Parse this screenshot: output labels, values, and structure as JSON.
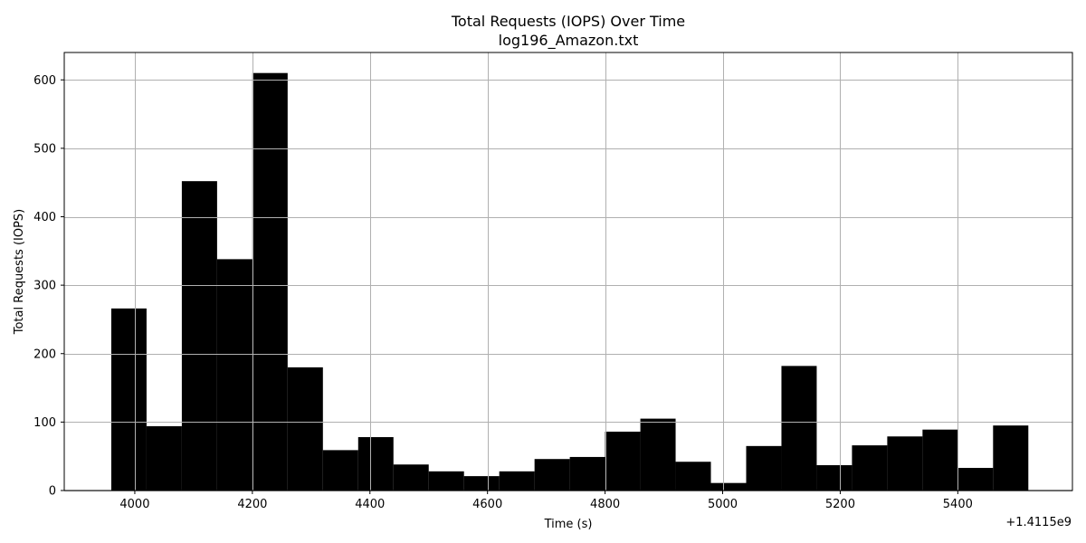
{
  "chart_data": {
    "type": "bar",
    "title": "Total Requests (IOPS) Over Time",
    "subtitle": "log196_Amazon.txt",
    "xlabel": "Time (s)",
    "ylabel": "Total Requests (IOPS)",
    "x_offset_label": "+1.4115e9",
    "xlim": [
      3880,
      5595
    ],
    "ylim": [
      0,
      640
    ],
    "xticks": [
      4000,
      4200,
      4400,
      4600,
      4800,
      5000,
      5200,
      5400
    ],
    "yticks": [
      0,
      100,
      200,
      300,
      400,
      500,
      600
    ],
    "grid": true,
    "bar_color": "#000000",
    "grid_color": "#b0b0b0",
    "bins": [
      {
        "x0": 3960,
        "x1": 4020,
        "value": 266
      },
      {
        "x0": 4020,
        "x1": 4080,
        "value": 94
      },
      {
        "x0": 4080,
        "x1": 4140,
        "value": 452
      },
      {
        "x0": 4140,
        "x1": 4200,
        "value": 338
      },
      {
        "x0": 4200,
        "x1": 4260,
        "value": 610
      },
      {
        "x0": 4260,
        "x1": 4320,
        "value": 180
      },
      {
        "x0": 4320,
        "x1": 4380,
        "value": 59
      },
      {
        "x0": 4380,
        "x1": 4440,
        "value": 78
      },
      {
        "x0": 4440,
        "x1": 4500,
        "value": 38
      },
      {
        "x0": 4500,
        "x1": 4560,
        "value": 28
      },
      {
        "x0": 4560,
        "x1": 4620,
        "value": 21
      },
      {
        "x0": 4620,
        "x1": 4680,
        "value": 28
      },
      {
        "x0": 4680,
        "x1": 4740,
        "value": 46
      },
      {
        "x0": 4740,
        "x1": 4800,
        "value": 49
      },
      {
        "x0": 4800,
        "x1": 4860,
        "value": 86
      },
      {
        "x0": 4860,
        "x1": 4920,
        "value": 105
      },
      {
        "x0": 4920,
        "x1": 4980,
        "value": 42
      },
      {
        "x0": 4980,
        "x1": 5040,
        "value": 11
      },
      {
        "x0": 5040,
        "x1": 5100,
        "value": 65
      },
      {
        "x0": 5100,
        "x1": 5160,
        "value": 182
      },
      {
        "x0": 5160,
        "x1": 5220,
        "value": 37
      },
      {
        "x0": 5220,
        "x1": 5280,
        "value": 66
      },
      {
        "x0": 5280,
        "x1": 5340,
        "value": 79
      },
      {
        "x0": 5340,
        "x1": 5400,
        "value": 89
      },
      {
        "x0": 5400,
        "x1": 5460,
        "value": 33
      },
      {
        "x0": 5460,
        "x1": 5520,
        "value": 95
      }
    ]
  }
}
